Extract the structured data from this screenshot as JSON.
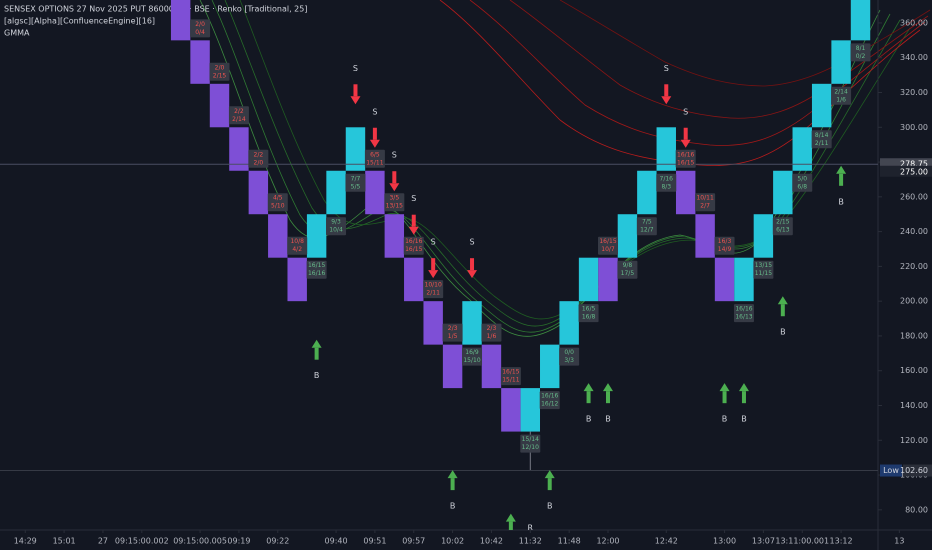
{
  "chart_data": {
    "type": "renko",
    "title": "SENSEX OPTIONS 27 Nov 2025 PUT 86000 · 1 · BSE · Renko [Traditional, 25]",
    "indicator": "[algsc][Alpha][ConfluenceEngine][16]",
    "overlay": "GMMA",
    "up_color": "#26c6da",
    "down_color": "#7e4fd6",
    "up_label_color": "#66bb8a",
    "down_label_color": "#ef5350",
    "xlim": [
      -9.3,
      35.9
    ],
    "ylim": [
      68.4,
      373.2
    ],
    "yticks": [
      {
        "value": 80,
        "label": "80.00"
      },
      {
        "value": 100,
        "label": "100.00"
      },
      {
        "value": 120,
        "label": "120.00"
      },
      {
        "value": 140,
        "label": "140.00"
      },
      {
        "value": 160,
        "label": "160.00"
      },
      {
        "value": 180,
        "label": "180.00"
      },
      {
        "value": 200,
        "label": "200.00"
      },
      {
        "value": 220,
        "label": "220.00"
      },
      {
        "value": 240,
        "label": "240.00"
      },
      {
        "value": 260,
        "label": "260.00"
      },
      {
        "value": 280,
        "label": "280.00"
      },
      {
        "value": 300,
        "label": "300.00"
      },
      {
        "value": 320,
        "label": "320.00"
      },
      {
        "value": 340,
        "label": "340.00"
      },
      {
        "value": 360,
        "label": "360.00"
      }
    ],
    "xticks": [
      {
        "value": -8,
        "label": "14:29"
      },
      {
        "value": -6,
        "label": "15:01"
      },
      {
        "value": -4,
        "label": "27"
      },
      {
        "value": -2,
        "label": "09:15:00.002"
      },
      {
        "value": 1,
        "label": "09:15:00.005"
      },
      {
        "value": 3,
        "label": "09:19"
      },
      {
        "value": 5,
        "label": "09:22"
      },
      {
        "value": 8,
        "label": "09:40"
      },
      {
        "value": 10,
        "label": "09:51"
      },
      {
        "value": 12,
        "label": "09:57"
      },
      {
        "value": 14,
        "label": "10:02"
      },
      {
        "value": 16,
        "label": "10:42"
      },
      {
        "value": 18,
        "label": "11:32"
      },
      {
        "value": 20,
        "label": "11:48"
      },
      {
        "value": 22,
        "label": "12:00"
      },
      {
        "value": 25,
        "label": "12:42"
      },
      {
        "value": 28,
        "label": "13:00"
      },
      {
        "value": 30,
        "label": "13:07"
      },
      {
        "value": 32,
        "label": "13:11:00.001"
      },
      {
        "value": 34,
        "label": "13:12"
      },
      {
        "value": 37,
        "label": "13"
      }
    ],
    "bricks": [
      {
        "open": 375,
        "close": 350
      },
      {
        "open": 350,
        "close": 325
      },
      {
        "open": 325,
        "close": 300
      },
      {
        "open": 300,
        "close": 275
      },
      {
        "open": 275,
        "close": 250
      },
      {
        "open": 250,
        "close": 225
      },
      {
        "open": 225,
        "close": 200
      },
      {
        "open": 225,
        "close": 250
      },
      {
        "open": 250,
        "close": 275
      },
      {
        "open": 275,
        "close": 300
      },
      {
        "open": 275,
        "close": 250
      },
      {
        "open": 250,
        "close": 225
      },
      {
        "open": 225,
        "close": 200
      },
      {
        "open": 200,
        "close": 175
      },
      {
        "open": 175,
        "close": 150
      },
      {
        "open": 175,
        "close": 200
      },
      {
        "open": 175,
        "close": 150
      },
      {
        "open": 150,
        "close": 125
      },
      {
        "open": 125,
        "close": 150
      },
      {
        "open": 150,
        "close": 175
      },
      {
        "open": 175,
        "close": 200
      },
      {
        "open": 200,
        "close": 225
      },
      {
        "open": 225,
        "close": 200
      },
      {
        "open": 225,
        "close": 250
      },
      {
        "open": 250,
        "close": 275
      },
      {
        "open": 275,
        "close": 300
      },
      {
        "open": 275,
        "close": 250
      },
      {
        "open": 250,
        "close": 225
      },
      {
        "open": 225,
        "close": 200
      },
      {
        "open": 200,
        "close": 225
      },
      {
        "open": 225,
        "close": 250
      },
      {
        "open": 250,
        "close": 275
      },
      {
        "open": 275,
        "close": 300
      },
      {
        "open": 300,
        "close": 325
      },
      {
        "open": 325,
        "close": 350
      },
      {
        "open": 350,
        "close": 375
      }
    ],
    "brick_labels": [
      {
        "brick": 0,
        "text": [
          "2/0",
          "3/11"
        ]
      },
      {
        "brick": 1,
        "text": [
          "2/0",
          "0/4"
        ]
      },
      {
        "brick": 2,
        "text": [
          "2/0",
          "2/15"
        ]
      },
      {
        "brick": 3,
        "text": [
          "2/2",
          "2/14"
        ]
      },
      {
        "brick": 4,
        "text": [
          "2/2",
          "2/0"
        ]
      },
      {
        "brick": 5,
        "text": [
          "4/5",
          "5/10"
        ]
      },
      {
        "brick": 6,
        "text": [
          "10/8",
          "4/2"
        ]
      },
      {
        "brick": 7,
        "text": [
          "16/15",
          "16/16"
        ]
      },
      {
        "brick": 8,
        "text": [
          "9/3",
          "10/4"
        ]
      },
      {
        "brick": 9,
        "text": [
          "7/7",
          "5/5"
        ]
      },
      {
        "brick": 10,
        "text": [
          "6/5",
          "15/11"
        ]
      },
      {
        "brick": 11,
        "text": [
          "3/5",
          "13/15"
        ]
      },
      {
        "brick": 12,
        "text": [
          "16/16",
          "16/15"
        ]
      },
      {
        "brick": 13,
        "text": [
          "10/10",
          "2/11"
        ]
      },
      {
        "brick": 14,
        "text": [
          "2/3",
          "1/5"
        ]
      },
      {
        "brick": 15,
        "text": [
          "16/9",
          "15/10"
        ]
      },
      {
        "brick": 16,
        "text": [
          "2/3",
          "1/6"
        ]
      },
      {
        "brick": 17,
        "text": [
          "16/15",
          "15/11"
        ]
      },
      {
        "brick": 18,
        "text": [
          "15/14",
          "12/10"
        ]
      },
      {
        "brick": 19,
        "text": [
          "16/16",
          "16/12"
        ]
      },
      {
        "brick": 20,
        "text": [
          "0/0",
          "3/3"
        ]
      },
      {
        "brick": 21,
        "text": [
          "16/5",
          "16/8"
        ]
      },
      {
        "brick": 22,
        "text": [
          "16/15",
          "10/7"
        ]
      },
      {
        "brick": 23,
        "text": [
          "9/8",
          "17/5"
        ]
      },
      {
        "brick": 24,
        "text": [
          "7/5",
          "12/7"
        ]
      },
      {
        "brick": 25,
        "text": [
          "7/16",
          "8/3"
        ]
      },
      {
        "brick": 26,
        "text": [
          "16/16",
          "16/15"
        ]
      },
      {
        "brick": 27,
        "text": [
          "10/11",
          "2/7"
        ]
      },
      {
        "brick": 28,
        "text": [
          "16/3",
          "14/9"
        ]
      },
      {
        "brick": 29,
        "text": [
          "16/16",
          "16/13"
        ]
      },
      {
        "brick": 30,
        "text": [
          "13/15",
          "11/15"
        ]
      },
      {
        "brick": 31,
        "text": [
          "2/15",
          "6/13"
        ]
      },
      {
        "brick": 32,
        "text": [
          "5/0",
          "6/8"
        ]
      },
      {
        "brick": 33,
        "text": [
          "8/14",
          "2/11"
        ]
      },
      {
        "brick": 34,
        "text": [
          "2/14",
          "1/6"
        ]
      },
      {
        "brick": 35,
        "text": [
          "8/1",
          "0/2"
        ]
      }
    ],
    "signals": [
      {
        "brick": 9,
        "label": "S"
      },
      {
        "brick": 10,
        "label": "S"
      },
      {
        "brick": 11,
        "label": "S"
      },
      {
        "brick": 12,
        "label": "S"
      },
      {
        "brick": 13,
        "label": "S"
      },
      {
        "brick": 15,
        "label": "S"
      },
      {
        "brick": 25,
        "label": "S"
      },
      {
        "brick": 26,
        "label": "S"
      },
      {
        "brick": 7,
        "label": "B"
      },
      {
        "brick": 14,
        "label": "B"
      },
      {
        "brick": 17,
        "label": "B"
      },
      {
        "brick": 19,
        "label": "B"
      },
      {
        "brick": 21,
        "label": "B"
      },
      {
        "brick": 22,
        "label": "B"
      },
      {
        "brick": 28,
        "label": "B"
      },
      {
        "brick": 29,
        "label": "B"
      },
      {
        "brick": 31,
        "label": "B"
      },
      {
        "brick": 34,
        "label": "B"
      },
      {
        "brick": 18,
        "label": "R"
      }
    ],
    "last_price": {
      "value": 278.75,
      "label": "278.75"
    },
    "brick_close": {
      "value": 275,
      "label": "275.00"
    },
    "low": {
      "name": "Low",
      "value": 102.6,
      "label": "102.60",
      "brick": 18
    }
  }
}
